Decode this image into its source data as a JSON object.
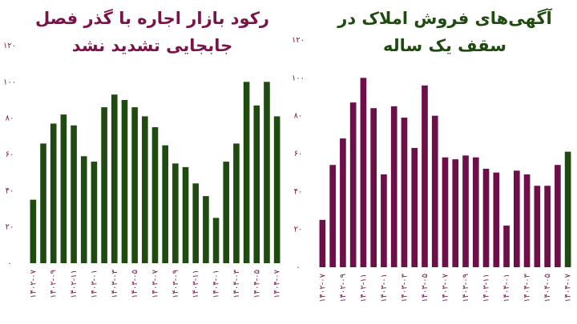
{
  "charts": [
    {
      "type": "bar",
      "title": "رکود بازار اجاره با گذر فصل",
      "subtitle": "جابجایی تشدید نشد",
      "title_color": "#7a1448",
      "categories": [
        "۱۴۰۲-۰۷",
        null,
        "۱۴۰۲-۰۹",
        null,
        "۱۴۰۲-۱۱",
        null,
        "۱۴۰۳-۰۱",
        null,
        "۱۴۰۳-۰۳",
        null,
        "۱۴۰۳-۰۵",
        null,
        "۱۴۰۳-۰۷",
        null,
        "۱۴۰۳-۰۹",
        null,
        "۱۴۰۳-۱۱",
        null,
        "۱۴۰۴-۰۱",
        null,
        "۱۴۰۴-۰۳",
        null,
        "۱۴۰۴-۰۵",
        null,
        "۱۴۰۴-۰۷"
      ],
      "values": [
        35,
        66,
        77,
        82,
        76,
        59,
        56,
        86,
        93,
        90,
        86,
        81,
        75,
        65,
        55,
        53,
        44,
        37,
        25,
        56,
        66,
        100,
        87,
        100,
        81
      ],
      "colors": [
        "#1f4a10",
        "#1f4a10",
        "#1f4a10",
        "#1f4a10",
        "#1f4a10",
        "#1f4a10",
        "#1f4a10",
        "#1f4a10",
        "#1f4a10",
        "#1f4a10",
        "#1f4a10",
        "#1f4a10",
        "#1f4a10",
        "#1f4a10",
        "#1f4a10",
        "#1f4a10",
        "#1f4a10",
        "#1f4a10",
        "#1f4a10",
        "#1f4a10",
        "#1f4a10",
        "#1f4a10",
        "#1f4a10",
        "#1f4a10",
        "#1f4a10"
      ],
      "ylim": [
        0,
        120
      ],
      "yticks": [
        {
          "value": 0,
          "label": "۰"
        },
        {
          "value": 20,
          "label": "۲۰"
        },
        {
          "value": 40,
          "label": "۴۰"
        },
        {
          "value": 60,
          "label": "۶۰"
        },
        {
          "value": 80,
          "label": "۸۰"
        },
        {
          "value": 100,
          "label": "۱۰۰"
        },
        {
          "value": 120,
          "label": "۱۲۰"
        }
      ]
    },
    {
      "type": "bar",
      "title": "آگهی‌های فروش املاک در",
      "subtitle": "سقف یک ساله",
      "title_color": "#1f4a10",
      "categories": [
        "۱۴۰۲-۰۷",
        null,
        "۱۴۰۲-۰۹",
        null,
        "۱۴۰۲-۱۱",
        null,
        "۱۴۰۳-۰۱",
        null,
        "۱۴۰۳-۰۳",
        null,
        "۱۴۰۳-۰۵",
        null,
        "۱۴۰۳-۰۷",
        null,
        "۱۴۰۳-۰۹",
        null,
        "۱۴۰۳-۱۱",
        null,
        "۱۴۰۴-۰۱",
        null,
        "۱۴۰۴-۰۳",
        null,
        "۱۴۰۴-۰۵",
        null,
        "۱۴۰۴-۰۷"
      ],
      "values": [
        25,
        54,
        68,
        87,
        100,
        84,
        49,
        85,
        79,
        63,
        96,
        80,
        58,
        57,
        59,
        58,
        52,
        50,
        22,
        51,
        49,
        43,
        43,
        54,
        61
      ],
      "colors": [
        "#6e0f4a",
        "#6e0f4a",
        "#6e0f4a",
        "#6e0f4a",
        "#6e0f4a",
        "#6e0f4a",
        "#6e0f4a",
        "#6e0f4a",
        "#6e0f4a",
        "#6e0f4a",
        "#6e0f4a",
        "#6e0f4a",
        "#6e0f4a",
        "#6e0f4a",
        "#6e0f4a",
        "#6e0f4a",
        "#6e0f4a",
        "#6e0f4a",
        "#6e0f4a",
        "#6e0f4a",
        "#6e0f4a",
        "#6e0f4a",
        "#6e0f4a",
        "#6e0f4a",
        "#1f4a10"
      ],
      "ylim": [
        0,
        120
      ],
      "yticks": [
        {
          "value": 0,
          "label": "۰"
        },
        {
          "value": 20,
          "label": "۲۰"
        },
        {
          "value": 40,
          "label": "۴۰"
        },
        {
          "value": 60,
          "label": "۶۰"
        },
        {
          "value": 80,
          "label": "۸۰"
        },
        {
          "value": 100,
          "label": "۱۰۰"
        },
        {
          "value": 120,
          "label": "۱۲۰"
        }
      ]
    }
  ]
}
